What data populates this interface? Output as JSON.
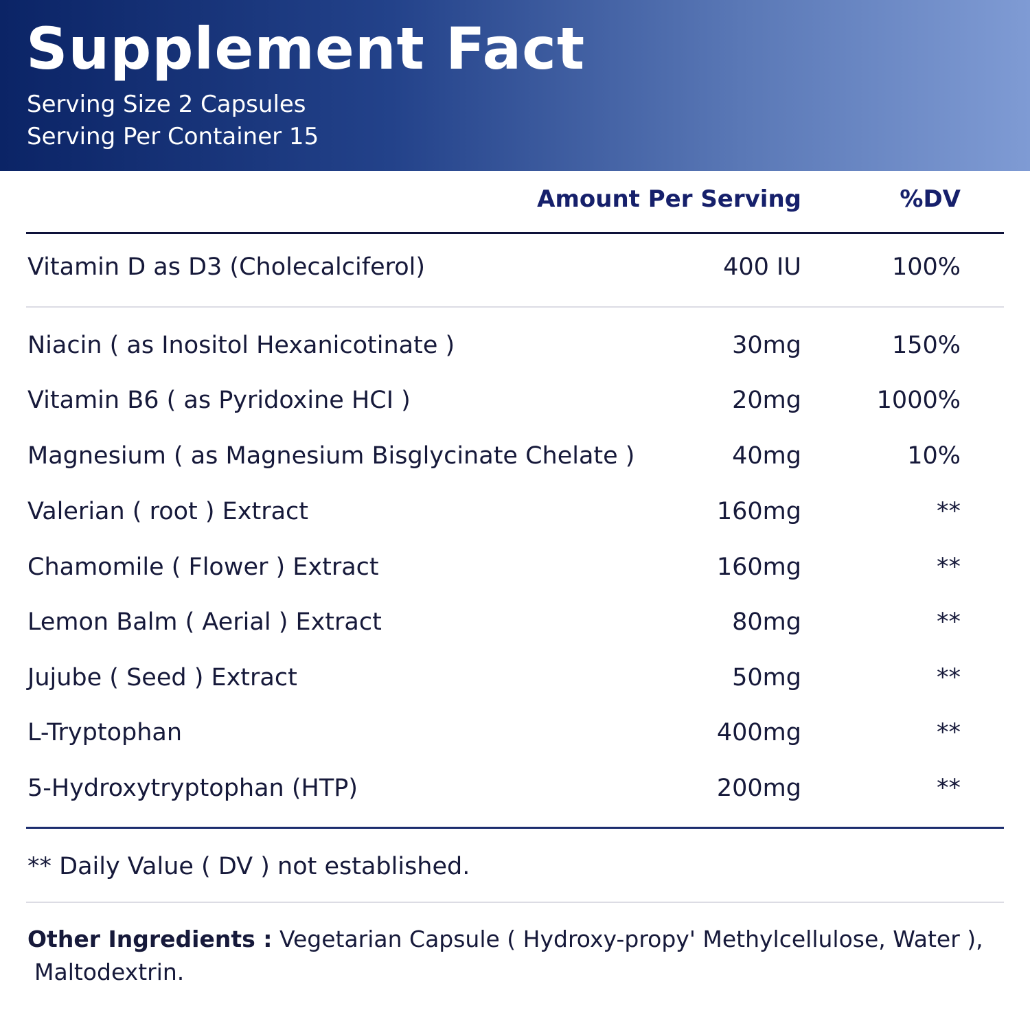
{
  "header": {
    "title": "Supplement  Fact",
    "serving_size": "Serving Size 2 Capsules",
    "servings_per_container": "Serving Per Container 15"
  },
  "columns": {
    "amount": "Amount Per Serving",
    "dv": "%DV"
  },
  "ingredients": [
    {
      "name": "Vitamin D as D3 (Cholecalciferol)",
      "amount": "400 IU",
      "dv": "100%"
    },
    {
      "name": "Niacin ( as Inositol Hexanicotinate )",
      "amount": "30mg",
      "dv": "150%"
    },
    {
      "name": "Vitamin B6 ( as Pyridoxine HCI )",
      "amount": "20mg",
      "dv": "1000%"
    },
    {
      "name": "Magnesium ( as Magnesium Bisglycinate Chelate )",
      "amount": "40mg",
      "dv": "10%"
    },
    {
      "name": "Valerian ( root ) Extract",
      "amount": "160mg",
      "dv": "**"
    },
    {
      "name": "Chamomile ( Flower ) Extract",
      "amount": "160mg",
      "dv": "**"
    },
    {
      "name": "Lemon Balm ( Aerial ) Extract",
      "amount": "80mg",
      "dv": "**"
    },
    {
      "name": "Jujube ( Seed ) Extract",
      "amount": "50mg",
      "dv": "**"
    },
    {
      "name": "L-Tryptophan",
      "amount": "400mg",
      "dv": "**"
    },
    {
      "name": "5-Hydroxytryptophan (HTP)",
      "amount": "200mg",
      "dv": "**"
    }
  ],
  "footnote": "** Daily Value ( DV ) not established.",
  "other_ingredients": {
    "label": "Other Ingredients :",
    "line1": "Vegetarian Capsule ( Hydroxy-propy' Methylcellulose, Water ),",
    "line2": "Maltodextrin."
  },
  "colors": {
    "header_dark": "#0b2466",
    "header_light": "#7f9bd4",
    "column_heading": "#16206b",
    "text": "#16193a"
  }
}
